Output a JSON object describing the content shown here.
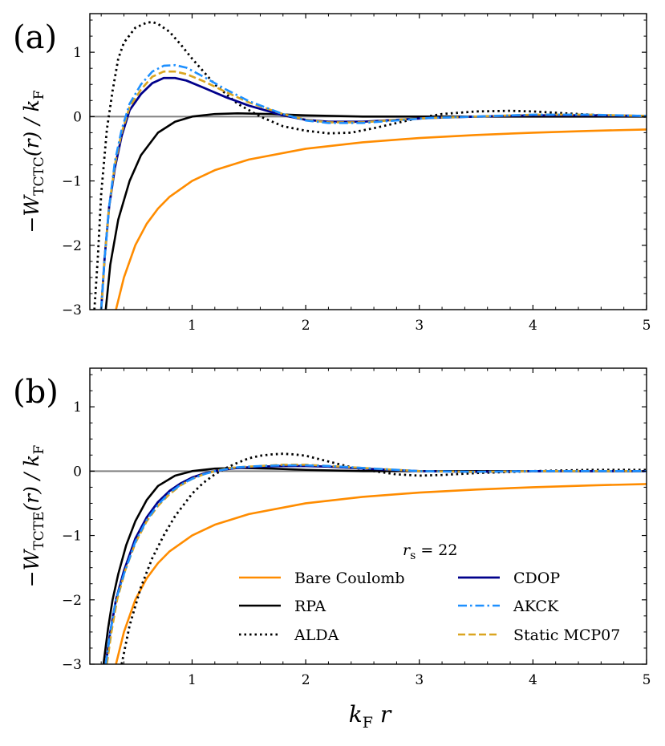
{
  "chart_data": [
    {
      "type": "line",
      "panel_label": "(a)",
      "ylabel": {
        "main": "−W",
        "sub": "TCTC",
        "arg": "(r) / k",
        "sub2": "F"
      },
      "xlim": [
        0.1,
        5
      ],
      "ylim": [
        -3,
        1.6
      ],
      "xticks": [
        1,
        2,
        3,
        4,
        5
      ],
      "xtick_labels": [
        "1",
        "2",
        "3",
        "4",
        "5"
      ],
      "yticks": [
        -3,
        -2,
        -1,
        0,
        1
      ],
      "ytick_labels": [
        "−3",
        "−2",
        "−1",
        "0",
        "1"
      ],
      "hline": 0,
      "series": [
        {
          "name": "Bare Coulomb",
          "style": "solid",
          "color": "#ff8c00",
          "x": [
            0.33,
            0.4,
            0.5,
            0.6,
            0.7,
            0.8,
            1.0,
            1.2,
            1.5,
            2.0,
            2.5,
            3.0,
            3.5,
            4.0,
            4.5,
            5.0
          ],
          "y": [
            -3.0,
            -2.5,
            -2.0,
            -1.667,
            -1.429,
            -1.25,
            -1.0,
            -0.833,
            -0.667,
            -0.5,
            -0.4,
            -0.333,
            -0.286,
            -0.25,
            -0.222,
            -0.2
          ]
        },
        {
          "name": "RPA",
          "style": "solid",
          "color": "#000000",
          "x": [
            0.24,
            0.28,
            0.35,
            0.45,
            0.55,
            0.7,
            0.85,
            1.0,
            1.2,
            1.4,
            1.7,
            2.0,
            2.5,
            3.0,
            4.0,
            5.0
          ],
          "y": [
            -3.0,
            -2.3,
            -1.6,
            -1.0,
            -0.6,
            -0.25,
            -0.08,
            0.0,
            0.04,
            0.05,
            0.04,
            0.02,
            0.0,
            0.0,
            0.0,
            0.0
          ]
        },
        {
          "name": "CDOP",
          "style": "solid",
          "color": "#00008b",
          "x": [
            0.2,
            0.23,
            0.27,
            0.32,
            0.38,
            0.45,
            0.55,
            0.65,
            0.75,
            0.85,
            0.95,
            1.1,
            1.3,
            1.5,
            1.8,
            2.0,
            2.2,
            2.5,
            2.8,
            3.1,
            3.5,
            4.0,
            4.5,
            5.0
          ],
          "y": [
            -3.0,
            -2.2,
            -1.4,
            -0.8,
            -0.3,
            0.1,
            0.35,
            0.52,
            0.6,
            0.6,
            0.56,
            0.45,
            0.3,
            0.17,
            0.02,
            -0.05,
            -0.08,
            -0.08,
            -0.05,
            -0.02,
            0.0,
            0.02,
            0.02,
            0.01
          ]
        },
        {
          "name": "AKCK",
          "style": "dashdot",
          "color": "#1e90ff",
          "x": [
            0.2,
            0.23,
            0.27,
            0.32,
            0.38,
            0.45,
            0.55,
            0.65,
            0.75,
            0.85,
            0.95,
            1.1,
            1.3,
            1.5,
            1.8,
            2.0,
            2.2,
            2.5,
            2.8,
            3.1,
            3.5,
            4.0,
            4.5,
            5.0
          ],
          "y": [
            -3.0,
            -2.2,
            -1.4,
            -0.7,
            -0.2,
            0.2,
            0.5,
            0.7,
            0.79,
            0.8,
            0.76,
            0.62,
            0.42,
            0.24,
            0.04,
            -0.06,
            -0.1,
            -0.1,
            -0.06,
            -0.02,
            0.0,
            0.03,
            0.03,
            0.01
          ]
        },
        {
          "name": "Static MCP07",
          "style": "dashed",
          "color": "#daa520",
          "x": [
            0.2,
            0.23,
            0.27,
            0.32,
            0.38,
            0.45,
            0.55,
            0.65,
            0.75,
            0.85,
            0.95,
            1.1,
            1.3,
            1.5,
            1.8,
            2.0,
            2.2,
            2.5,
            2.8,
            3.1,
            3.5,
            4.0,
            4.5,
            5.0
          ],
          "y": [
            -3.0,
            -2.2,
            -1.4,
            -0.75,
            -0.25,
            0.15,
            0.42,
            0.62,
            0.7,
            0.7,
            0.66,
            0.55,
            0.38,
            0.22,
            0.04,
            -0.05,
            -0.09,
            -0.09,
            -0.05,
            -0.02,
            0.0,
            0.03,
            0.03,
            0.01
          ]
        },
        {
          "name": "ALDA",
          "style": "dotted",
          "color": "#000000",
          "x": [
            0.14,
            0.17,
            0.2,
            0.25,
            0.3,
            0.35,
            0.4,
            0.5,
            0.6,
            0.65,
            0.7,
            0.8,
            0.9,
            1.0,
            1.2,
            1.4,
            1.6,
            1.8,
            2.0,
            2.2,
            2.4,
            2.6,
            2.8,
            3.0,
            3.2,
            3.5,
            3.8,
            4.0,
            4.3,
            4.6,
            5.0
          ],
          "y": [
            -3.0,
            -2.2,
            -1.2,
            -0.2,
            0.4,
            0.9,
            1.15,
            1.38,
            1.46,
            1.47,
            1.44,
            1.32,
            1.12,
            0.9,
            0.5,
            0.2,
            0.0,
            -0.15,
            -0.22,
            -0.26,
            -0.25,
            -0.18,
            -0.1,
            -0.02,
            0.04,
            0.08,
            0.09,
            0.08,
            0.05,
            0.02,
            0.0
          ]
        }
      ]
    },
    {
      "type": "line",
      "panel_label": "(b)",
      "ylabel": {
        "main": "−W",
        "sub": "TCTE",
        "arg": "(r) / k",
        "sub2": "F"
      },
      "xlim": [
        0.1,
        5
      ],
      "ylim": [
        -3,
        1.6
      ],
      "xticks": [
        1,
        2,
        3,
        4,
        5
      ],
      "xtick_labels": [
        "1",
        "2",
        "3",
        "4",
        "5"
      ],
      "yticks": [
        -3,
        -2,
        -1,
        0,
        1
      ],
      "ytick_labels": [
        "−3",
        "−2",
        "−1",
        "0",
        "1"
      ],
      "hline": 0,
      "xlabel": {
        "main": "k",
        "sub": "F",
        "after": " r"
      },
      "annotation": {
        "text_main": "r",
        "text_sub": "s",
        "text_after": " = 22"
      },
      "series": [
        {
          "name": "Bare Coulomb",
          "style": "solid",
          "color": "#ff8c00",
          "x": [
            0.33,
            0.4,
            0.5,
            0.6,
            0.7,
            0.8,
            1.0,
            1.2,
            1.5,
            2.0,
            2.5,
            3.0,
            3.5,
            4.0,
            4.5,
            5.0
          ],
          "y": [
            -3.0,
            -2.5,
            -2.0,
            -1.667,
            -1.429,
            -1.25,
            -1.0,
            -0.833,
            -0.667,
            -0.5,
            -0.4,
            -0.333,
            -0.286,
            -0.25,
            -0.222,
            -0.2
          ]
        },
        {
          "name": "RPA",
          "style": "solid",
          "color": "#000000",
          "x": [
            0.22,
            0.26,
            0.3,
            0.35,
            0.42,
            0.5,
            0.6,
            0.7,
            0.85,
            1.0,
            1.2,
            1.4,
            1.7,
            2.0,
            2.5,
            3.0,
            4.0,
            5.0
          ],
          "y": [
            -3.0,
            -2.45,
            -2.0,
            -1.6,
            -1.15,
            -0.78,
            -0.45,
            -0.23,
            -0.07,
            0.0,
            0.04,
            0.05,
            0.04,
            0.02,
            0.0,
            0.0,
            0.0,
            0.0
          ]
        },
        {
          "name": "CDOP",
          "style": "solid",
          "color": "#00008b",
          "x": [
            0.24,
            0.28,
            0.33,
            0.4,
            0.5,
            0.6,
            0.7,
            0.8,
            0.9,
            1.0,
            1.1,
            1.2,
            1.3,
            1.4,
            1.6,
            1.8,
            2.0,
            2.2,
            2.5,
            3.0,
            3.5,
            4.0,
            5.0
          ],
          "y": [
            -3.0,
            -2.5,
            -2.0,
            -1.55,
            -1.05,
            -0.72,
            -0.48,
            -0.31,
            -0.19,
            -0.1,
            -0.04,
            0.0,
            0.03,
            0.05,
            0.07,
            0.08,
            0.08,
            0.07,
            0.04,
            0.0,
            -0.01,
            0.0,
            0.0
          ]
        },
        {
          "name": "AKCK",
          "style": "dashdot",
          "color": "#1e90ff",
          "x": [
            0.24,
            0.28,
            0.33,
            0.4,
            0.5,
            0.6,
            0.7,
            0.8,
            0.9,
            1.0,
            1.1,
            1.2,
            1.3,
            1.4,
            1.6,
            1.8,
            2.0,
            2.2,
            2.5,
            3.0,
            3.5,
            4.0,
            5.0
          ],
          "y": [
            -3.0,
            -2.5,
            -2.0,
            -1.6,
            -1.1,
            -0.76,
            -0.52,
            -0.34,
            -0.21,
            -0.12,
            -0.05,
            0.0,
            0.03,
            0.06,
            0.08,
            0.09,
            0.09,
            0.08,
            0.05,
            0.0,
            -0.01,
            0.0,
            0.0
          ]
        },
        {
          "name": "Static MCP07",
          "style": "dashed",
          "color": "#daa520",
          "x": [
            0.25,
            0.29,
            0.34,
            0.41,
            0.5,
            0.6,
            0.7,
            0.8,
            0.9,
            1.0,
            1.1,
            1.2,
            1.3,
            1.4,
            1.6,
            1.8,
            2.0,
            2.2,
            2.5,
            3.0,
            3.5,
            4.0,
            5.0
          ],
          "y": [
            -3.0,
            -2.5,
            -2.0,
            -1.55,
            -1.12,
            -0.78,
            -0.54,
            -0.36,
            -0.22,
            -0.12,
            -0.05,
            0.0,
            0.04,
            0.06,
            0.08,
            0.1,
            0.1,
            0.08,
            0.05,
            0.0,
            -0.01,
            0.0,
            0.0
          ]
        },
        {
          "name": "ALDA",
          "style": "dotted",
          "color": "#000000",
          "x": [
            0.38,
            0.45,
            0.55,
            0.65,
            0.75,
            0.85,
            1.0,
            1.1,
            1.2,
            1.3,
            1.4,
            1.5,
            1.6,
            1.7,
            1.8,
            1.9,
            2.0,
            2.2,
            2.4,
            2.6,
            2.8,
            3.0,
            3.2,
            3.5,
            4.0,
            4.5,
            5.0
          ],
          "y": [
            -3.0,
            -2.4,
            -1.8,
            -1.35,
            -1.0,
            -0.7,
            -0.35,
            -0.18,
            -0.05,
            0.05,
            0.13,
            0.2,
            0.24,
            0.26,
            0.27,
            0.26,
            0.24,
            0.15,
            0.06,
            0.0,
            -0.05,
            -0.07,
            -0.06,
            -0.03,
            0.0,
            0.02,
            0.02
          ]
        }
      ],
      "legend": {
        "placement": "lower-right",
        "columns": [
          [
            "Bare Coulomb",
            "RPA",
            "ALDA"
          ],
          [
            "CDOP",
            "AKCK",
            "Static MCP07"
          ]
        ]
      }
    }
  ]
}
